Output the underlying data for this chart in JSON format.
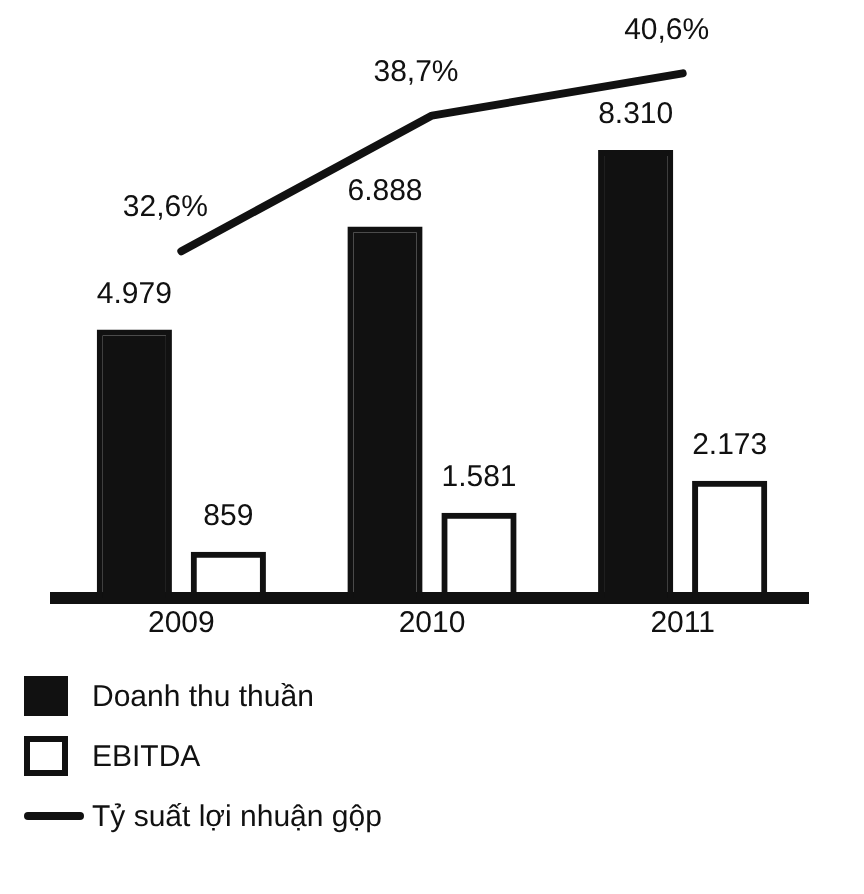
{
  "chart_data": {
    "type": "bar",
    "categories": [
      "2009",
      "2010",
      "2011"
    ],
    "series": [
      {
        "name": "Doanh thu thuần",
        "color": "#111111",
        "values": [
          4979,
          6888,
          8310
        ],
        "value_labels": [
          "4.979",
          "6.888",
          "8.310"
        ]
      },
      {
        "name": "EBITDA",
        "color": "#111111",
        "values": [
          859,
          1581,
          2173
        ],
        "value_labels": [
          "859",
          "1.581",
          "2.173"
        ]
      },
      {
        "name": "Tỷ suất lợi nhuận gộp",
        "type": "line",
        "axis": "y2",
        "color": "#111111",
        "values": [
          32.6,
          38.7,
          40.6
        ],
        "value_labels": [
          "32,6%",
          "38,7%",
          "40,6%"
        ]
      }
    ],
    "tick_labels": "x",
    "grid": false,
    "legend": "bottom",
    "marker": "none",
    "line_style": "solid"
  }
}
